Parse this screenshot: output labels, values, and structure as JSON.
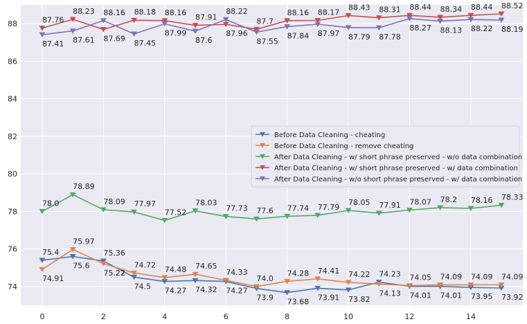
{
  "chart_data": {
    "type": "line",
    "title": "",
    "xlabel": "",
    "ylabel": "",
    "x": [
      0,
      1,
      2,
      3,
      4,
      5,
      6,
      7,
      8,
      9,
      10,
      11,
      12,
      13,
      14,
      15
    ],
    "xlim": [
      -0.7,
      15.7
    ],
    "ylim": [
      73.0,
      89.0
    ],
    "xticks": [
      "0",
      "2",
      "4",
      "6",
      "8",
      "10",
      "12",
      "14"
    ],
    "xtick_values": [
      0,
      2,
      4,
      6,
      8,
      10,
      12,
      14
    ],
    "yticks": [
      "74",
      "76",
      "78",
      "80",
      "82",
      "84",
      "86",
      "88"
    ],
    "ytick_values": [
      74,
      76,
      78,
      80,
      82,
      84,
      86,
      88
    ],
    "grid": true,
    "legend_position": "center-right",
    "marker": "triangle-down",
    "series": [
      {
        "name": "Before Data Cleaning - cheating",
        "color": "#4c72b0",
        "values": [
          75.4,
          75.6,
          75.36,
          74.5,
          74.27,
          74.32,
          74.27,
          73.9,
          73.68,
          73.91,
          73.82,
          74.23,
          74.01,
          74.01,
          73.95,
          73.92
        ],
        "labels": [
          "75.4",
          "75.6",
          "75.36",
          "74.5",
          "74.27",
          "74.32",
          "74.27",
          "73.9",
          "73.68",
          "73.91",
          "73.82",
          "74.23",
          "74.01",
          "74.01",
          "73.95",
          "73.92"
        ]
      },
      {
        "name": "Before Data Cleaning - remove cheating",
        "color": "#dd8452",
        "values": [
          74.91,
          75.97,
          75.22,
          74.72,
          74.48,
          74.65,
          74.33,
          74.0,
          74.28,
          74.41,
          74.22,
          74.13,
          74.05,
          74.09,
          74.09,
          74.09
        ],
        "labels": [
          "74.91",
          "75.97",
          "75.22",
          "74.72",
          "74.48",
          "74.65",
          "74.33",
          "74.0",
          "74.28",
          "74.41",
          "74.22",
          "74.13",
          "74.05",
          "74.09",
          "74.09",
          "74.09"
        ]
      },
      {
        "name": "After Data Cleaning - w/ short phrase preserved - w/o data combination",
        "color": "#55a868",
        "values": [
          78.0,
          78.89,
          78.09,
          77.97,
          77.52,
          78.03,
          77.73,
          77.6,
          77.74,
          77.79,
          78.05,
          77.91,
          78.07,
          78.2,
          78.16,
          78.33
        ],
        "labels": [
          "78.0",
          "78.89",
          "78.09",
          "77.97",
          "77.52",
          "78.03",
          "77.73",
          "77.6",
          "77.74",
          "77.79",
          "78.05",
          "77.91",
          "78.07",
          "78.2",
          "78.16",
          "78.33"
        ]
      },
      {
        "name": "After Data Cleaning - w/ short phrase preserved - w/ data combination",
        "color": "#c44e52",
        "values": [
          87.76,
          88.23,
          87.69,
          88.18,
          88.16,
          87.91,
          87.96,
          87.7,
          88.16,
          88.17,
          88.43,
          88.31,
          88.44,
          88.34,
          88.44,
          88.52
        ],
        "labels": [
          "87.76",
          "88.23",
          "87.69",
          "88.18",
          "88.16",
          "87.91",
          "87.96",
          "87.7",
          "88.16",
          "88.17",
          "88.43",
          "88.31",
          "88.44",
          "88.34",
          "88.44",
          "88.52"
        ]
      },
      {
        "name": "After Data Cleaning - w/o short phrase preserved - w/ data combination",
        "color": "#8172b3",
        "values": [
          87.41,
          87.61,
          88.16,
          87.45,
          87.99,
          87.6,
          88.22,
          87.55,
          87.84,
          87.97,
          87.79,
          87.78,
          88.27,
          88.13,
          88.22,
          88.19
        ],
        "labels": [
          "87.41",
          "87.61",
          "88.16",
          "87.45",
          "87.99",
          "87.6",
          "88.22",
          "87.55",
          "87.84",
          "87.97",
          "87.79",
          "87.78",
          "88.27",
          "88.13",
          "88.22",
          "88.19"
        ]
      }
    ]
  }
}
